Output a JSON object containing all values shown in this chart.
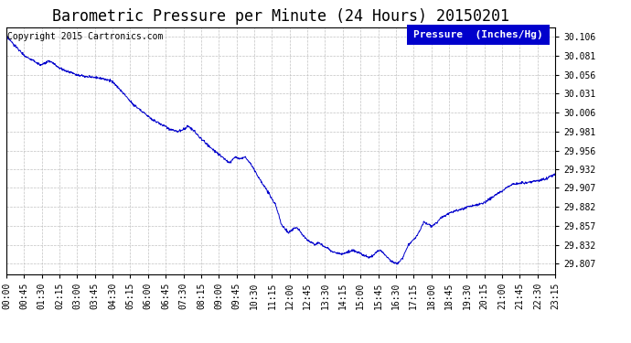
{
  "title": "Barometric Pressure per Minute (24 Hours) 20150201",
  "copyright_text": "Copyright 2015 Cartronics.com",
  "legend_label": "Pressure  (Inches/Hg)",
  "legend_bg": "#0000cc",
  "legend_fg": "#ffffff",
  "line_color": "#0000cc",
  "bg_color": "#ffffff",
  "grid_color": "#bbbbbb",
  "yticks": [
    29.807,
    29.832,
    29.857,
    29.882,
    29.907,
    29.932,
    29.956,
    29.981,
    30.006,
    30.031,
    30.056,
    30.081,
    30.106
  ],
  "ylim": [
    29.793,
    30.118
  ],
  "xtick_labels": [
    "00:00",
    "00:45",
    "01:30",
    "02:15",
    "03:00",
    "03:45",
    "04:30",
    "05:15",
    "06:00",
    "06:45",
    "07:30",
    "08:15",
    "09:00",
    "09:45",
    "10:30",
    "11:15",
    "12:00",
    "12:45",
    "13:30",
    "14:15",
    "15:00",
    "15:45",
    "16:30",
    "17:15",
    "18:00",
    "18:45",
    "19:30",
    "20:15",
    "21:00",
    "21:45",
    "22:30",
    "23:15"
  ],
  "title_fontsize": 12,
  "copyright_fontsize": 7,
  "tick_fontsize": 7,
  "legend_fontsize": 8,
  "keypoints": [
    [
      0,
      30.106
    ],
    [
      30,
      30.09
    ],
    [
      50,
      30.08
    ],
    [
      70,
      30.075
    ],
    [
      90,
      30.068
    ],
    [
      110,
      30.073
    ],
    [
      120,
      30.072
    ],
    [
      130,
      30.068
    ],
    [
      135,
      30.066
    ],
    [
      145,
      30.063
    ],
    [
      160,
      30.06
    ],
    [
      175,
      30.058
    ],
    [
      190,
      30.055
    ],
    [
      210,
      30.053
    ],
    [
      225,
      30.053
    ],
    [
      240,
      30.052
    ],
    [
      260,
      30.05
    ],
    [
      275,
      30.048
    ],
    [
      290,
      30.04
    ],
    [
      310,
      30.03
    ],
    [
      330,
      30.018
    ],
    [
      350,
      30.01
    ],
    [
      365,
      30.004
    ],
    [
      380,
      29.998
    ],
    [
      400,
      29.992
    ],
    [
      415,
      29.988
    ],
    [
      430,
      29.984
    ],
    [
      450,
      29.981
    ],
    [
      465,
      29.984
    ],
    [
      475,
      29.988
    ],
    [
      485,
      29.985
    ],
    [
      495,
      29.98
    ],
    [
      510,
      29.972
    ],
    [
      525,
      29.965
    ],
    [
      540,
      29.958
    ],
    [
      555,
      29.952
    ],
    [
      570,
      29.946
    ],
    [
      585,
      29.94
    ],
    [
      600,
      29.948
    ],
    [
      615,
      29.945
    ],
    [
      625,
      29.948
    ],
    [
      635,
      29.942
    ],
    [
      645,
      29.935
    ],
    [
      660,
      29.922
    ],
    [
      675,
      29.91
    ],
    [
      690,
      29.898
    ],
    [
      705,
      29.885
    ],
    [
      715,
      29.87
    ],
    [
      720,
      29.86
    ],
    [
      730,
      29.853
    ],
    [
      740,
      29.848
    ],
    [
      750,
      29.852
    ],
    [
      760,
      29.855
    ],
    [
      770,
      29.85
    ],
    [
      780,
      29.843
    ],
    [
      790,
      29.838
    ],
    [
      800,
      29.835
    ],
    [
      810,
      29.832
    ],
    [
      820,
      29.835
    ],
    [
      830,
      29.83
    ],
    [
      840,
      29.828
    ],
    [
      860,
      29.822
    ],
    [
      880,
      29.82
    ],
    [
      900,
      29.823
    ],
    [
      910,
      29.825
    ],
    [
      920,
      29.822
    ],
    [
      930,
      29.82
    ],
    [
      940,
      29.817
    ],
    [
      950,
      29.815
    ],
    [
      960,
      29.817
    ],
    [
      970,
      29.822
    ],
    [
      980,
      29.825
    ],
    [
      990,
      29.82
    ],
    [
      1000,
      29.815
    ],
    [
      1010,
      29.81
    ],
    [
      1025,
      29.807
    ],
    [
      1040,
      29.815
    ],
    [
      1050,
      29.828
    ],
    [
      1060,
      29.835
    ],
    [
      1075,
      29.843
    ],
    [
      1085,
      29.852
    ],
    [
      1090,
      29.858
    ],
    [
      1095,
      29.862
    ],
    [
      1100,
      29.86
    ],
    [
      1110,
      29.858
    ],
    [
      1115,
      29.855
    ],
    [
      1120,
      29.858
    ],
    [
      1130,
      29.862
    ],
    [
      1140,
      29.868
    ],
    [
      1150,
      29.87
    ],
    [
      1160,
      29.873
    ],
    [
      1170,
      29.875
    ],
    [
      1180,
      29.877
    ],
    [
      1190,
      29.878
    ],
    [
      1200,
      29.88
    ],
    [
      1210,
      29.882
    ],
    [
      1220,
      29.883
    ],
    [
      1230,
      29.884
    ],
    [
      1240,
      29.885
    ],
    [
      1250,
      29.887
    ],
    [
      1260,
      29.89
    ],
    [
      1270,
      29.893
    ],
    [
      1280,
      29.897
    ],
    [
      1290,
      29.9
    ],
    [
      1300,
      29.903
    ],
    [
      1310,
      29.907
    ],
    [
      1320,
      29.91
    ],
    [
      1330,
      29.912
    ],
    [
      1350,
      29.913
    ],
    [
      1370,
      29.914
    ],
    [
      1390,
      29.916
    ],
    [
      1410,
      29.918
    ],
    [
      1425,
      29.922
    ],
    [
      1439,
      29.925
    ]
  ]
}
